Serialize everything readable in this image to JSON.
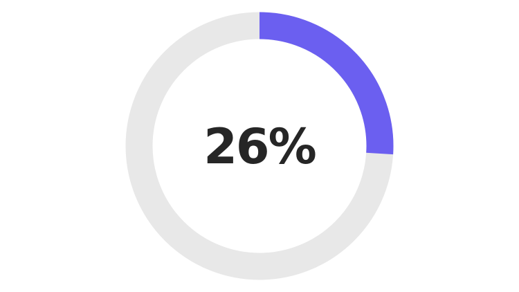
{
  "progress": {
    "value": 26,
    "label": "26%",
    "colors": {
      "fill": "#6b5ff0",
      "track": "#e8e8e8",
      "text": "#262626"
    }
  }
}
